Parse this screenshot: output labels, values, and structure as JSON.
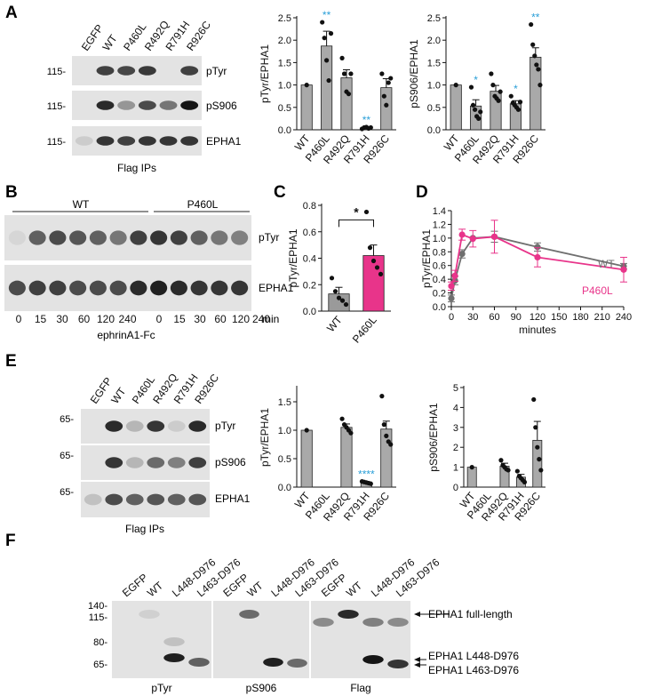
{
  "colors": {
    "bar_gray": "#a9a9a9",
    "pink": "#e8348a",
    "line_gray": "#6f6f6f",
    "sig_blue": "#2a9fd8",
    "blot_bg": "#e3e3e3"
  },
  "panel_letters": {
    "a": "A",
    "b": "B",
    "c": "C",
    "d": "D",
    "e": "E",
    "f": "F"
  },
  "panelA": {
    "lanes": [
      "EGFP",
      "WT",
      "P460L",
      "R492Q",
      "R791H",
      "R926C"
    ],
    "blots": [
      {
        "mw": "115-",
        "label": "pTyr",
        "bands": [
          0,
          0.75,
          0.72,
          0.78,
          0,
          0.75
        ]
      },
      {
        "mw": "115-",
        "label": "pS906",
        "bands": [
          0,
          0.85,
          0.35,
          0.7,
          0.5,
          0.95
        ]
      },
      {
        "mw": "115-",
        "label": "EPHA1",
        "bands": [
          0.1,
          0.8,
          0.75,
          0.8,
          0.8,
          0.8
        ]
      }
    ],
    "caption": "Flag IPs"
  },
  "panelB": {
    "groups": [
      "WT",
      "P460L"
    ],
    "time_labels": [
      "0",
      "15",
      "30",
      "60",
      "120",
      "240",
      "0",
      "15",
      "30",
      "60",
      "120",
      "240"
    ],
    "unit": "min",
    "caption": "ephrinA1-Fc",
    "blots": [
      {
        "label": "pTyr",
        "bands": [
          0.05,
          0.6,
          0.7,
          0.65,
          0.6,
          0.5,
          0.75,
          0.8,
          0.75,
          0.6,
          0.5,
          0.45
        ]
      },
      {
        "label": "EPHA1",
        "bands": [
          0.7,
          0.75,
          0.75,
          0.7,
          0.7,
          0.7,
          0.85,
          0.9,
          0.85,
          0.8,
          0.8,
          0.8
        ]
      }
    ]
  },
  "panelF": {
    "lanes": [
      "EGFP",
      "WT",
      "L448-D976",
      "L463-D976"
    ],
    "mw": [
      "140-",
      "115-",
      "80-",
      "65-"
    ],
    "captions": [
      "pTyr",
      "pS906",
      "Flag"
    ],
    "annotations": [
      "EPHA1 full-length",
      "EPHA1 L448-D976",
      "EPHA1 L463-D976"
    ]
  },
  "panelE": {
    "lanes": [
      "EGFP",
      "WT",
      "P460L",
      "R492Q",
      "R791H",
      "R926C"
    ],
    "blots": [
      {
        "mw": "65-",
        "label": "pTyr",
        "bands": [
          0,
          0.85,
          0.2,
          0.8,
          0.1,
          0.85
        ]
      },
      {
        "mw": "65-",
        "label": "pS906",
        "bands": [
          0,
          0.8,
          0.2,
          0.55,
          0.45,
          0.75
        ]
      },
      {
        "mw": "65-",
        "label": "EPHA1",
        "bands": [
          0.15,
          0.7,
          0.6,
          0.65,
          0.6,
          0.65
        ]
      }
    ],
    "caption": "Flag IPs"
  },
  "chart_data": [
    {
      "id": "A-pTyr",
      "type": "bar",
      "categories": [
        "WT",
        "P460L",
        "R492Q",
        "R791H",
        "R926C"
      ],
      "values": [
        1.0,
        1.87,
        1.16,
        0.04,
        0.94
      ],
      "errors": [
        0,
        0.33,
        0.18,
        0.02,
        0.2
      ],
      "points": [
        [
          1.0
        ],
        [
          2.4,
          2.05,
          1.55,
          1.1,
          2.15
        ],
        [
          1.6,
          1.25,
          0.85,
          0.8,
          1.25
        ],
        [
          0.02,
          0.05,
          0.06,
          0.03,
          0.05
        ],
        [
          1.25,
          0.75,
          0.55,
          1.05,
          1.15
        ]
      ],
      "significance": [
        "",
        "**",
        "",
        "**",
        ""
      ],
      "ylabel": "pTyr/EPHA1",
      "ylim": [
        0,
        2.5
      ],
      "yticks": [
        "0.0",
        "0.5",
        "1.0",
        "1.5",
        "2.0",
        "2.5"
      ]
    },
    {
      "id": "A-pS906",
      "type": "bar",
      "categories": [
        "WT",
        "P460L",
        "R492Q",
        "R791H",
        "R926C"
      ],
      "values": [
        1.0,
        0.53,
        0.86,
        0.58,
        1.62
      ],
      "errors": [
        0,
        0.14,
        0.13,
        0.07,
        0.21
      ],
      "points": [
        [
          1.0
        ],
        [
          0.95,
          0.55,
          0.45,
          0.3,
          0.25,
          0.4
        ],
        [
          1.25,
          1.0,
          0.75,
          0.7,
          0.65,
          0.85
        ],
        [
          0.75,
          0.6,
          0.55,
          0.5,
          0.45,
          0.62
        ],
        [
          2.35,
          1.9,
          1.65,
          1.45,
          1.35,
          1.0
        ]
      ],
      "significance": [
        "",
        "*",
        "",
        "*",
        "**"
      ],
      "ylabel": "pS906/EPHA1",
      "ylim": [
        0,
        2.5
      ],
      "yticks": [
        "0.0",
        "0.5",
        "1.0",
        "1.5",
        "2.0",
        "2.5"
      ]
    },
    {
      "id": "C",
      "type": "bar",
      "categories": [
        "WT",
        "P460L"
      ],
      "values": [
        0.13,
        0.42
      ],
      "errors": [
        0.05,
        0.08
      ],
      "points": [
        [
          0.25,
          0.15,
          0.1,
          0.08,
          0.05
        ],
        [
          0.75,
          0.48,
          0.38,
          0.33,
          0.28
        ]
      ],
      "significance_bracket": "*",
      "ylabel": "pTyr/EPHA1",
      "ylim": [
        0,
        0.8
      ],
      "yticks": [
        "0.0",
        "0.2",
        "0.4",
        "0.6",
        "0.8"
      ]
    },
    {
      "id": "D",
      "type": "line",
      "series": [
        {
          "name": "WT",
          "x": [
            0,
            5,
            15,
            30,
            60,
            120,
            240
          ],
          "y": [
            0.12,
            0.38,
            0.77,
            1.0,
            1.02,
            0.87,
            0.59
          ],
          "err": [
            0.05,
            0.06,
            0.06,
            0.0,
            0.08,
            0.06,
            0.04
          ]
        },
        {
          "name": "P460L",
          "x": [
            0,
            5,
            15,
            30,
            60,
            120,
            240
          ],
          "y": [
            0.3,
            0.45,
            1.05,
            0.99,
            1.02,
            0.72,
            0.54
          ],
          "err": [
            0.06,
            0.08,
            0.08,
            0.12,
            0.24,
            0.14,
            0.18
          ]
        }
      ],
      "ylabel": "pTyr/EPHA1",
      "xlabel": "minutes",
      "xlim": [
        0,
        240
      ],
      "ylim": [
        0,
        1.4
      ],
      "xticks": [
        "0",
        "30",
        "60",
        "90",
        "120",
        "150",
        "180",
        "210",
        "240"
      ],
      "yticks": [
        "0.0",
        "0.2",
        "0.4",
        "0.6",
        "0.8",
        "1.0",
        "1.2",
        "1.4"
      ]
    },
    {
      "id": "E-pTyr",
      "type": "bar",
      "categories": [
        "WT",
        "P460L",
        "R492Q",
        "R791H",
        "R926C"
      ],
      "values": [
        1.0,
        0,
        1.05,
        0.08,
        1.02
      ],
      "errors": [
        0,
        0,
        0.06,
        0.01,
        0.14
      ],
      "points": [
        [
          1.0
        ],
        [],
        [
          1.2,
          1.1,
          1.05,
          1.0,
          0.95
        ],
        [
          0.1,
          0.09,
          0.08,
          0.07,
          0.06
        ],
        [
          1.6,
          1.1,
          0.9,
          0.8,
          0.75
        ]
      ],
      "significance": [
        "",
        "",
        "",
        "****",
        ""
      ],
      "ylabel": "pTyr/EPHA1",
      "ylim": [
        0,
        1.75
      ],
      "yticks": [
        "0.0",
        "0.5",
        "1.0",
        "1.5"
      ]
    },
    {
      "id": "E-pS906",
      "type": "bar",
      "categories": [
        "WT",
        "P460L",
        "R492Q",
        "R791H",
        "R926C"
      ],
      "values": [
        1.0,
        0,
        1.05,
        0.5,
        2.35
      ],
      "errors": [
        0,
        0,
        0.15,
        0.14,
        0.95
      ],
      "points": [
        [
          1.0
        ],
        [],
        [
          1.35,
          1.1,
          1.0,
          0.9,
          0.85
        ],
        [
          0.8,
          0.55,
          0.45,
          0.35,
          0.25
        ],
        [
          4.4,
          3.0,
          2.0,
          1.4,
          0.85
        ]
      ],
      "significance": [
        "",
        "",
        "",
        "",
        ""
      ],
      "ylabel": "pS906/EPHA1",
      "ylim": [
        0,
        5
      ],
      "yticks": [
        "0",
        "1",
        "2",
        "3",
        "4",
        "5"
      ]
    }
  ]
}
